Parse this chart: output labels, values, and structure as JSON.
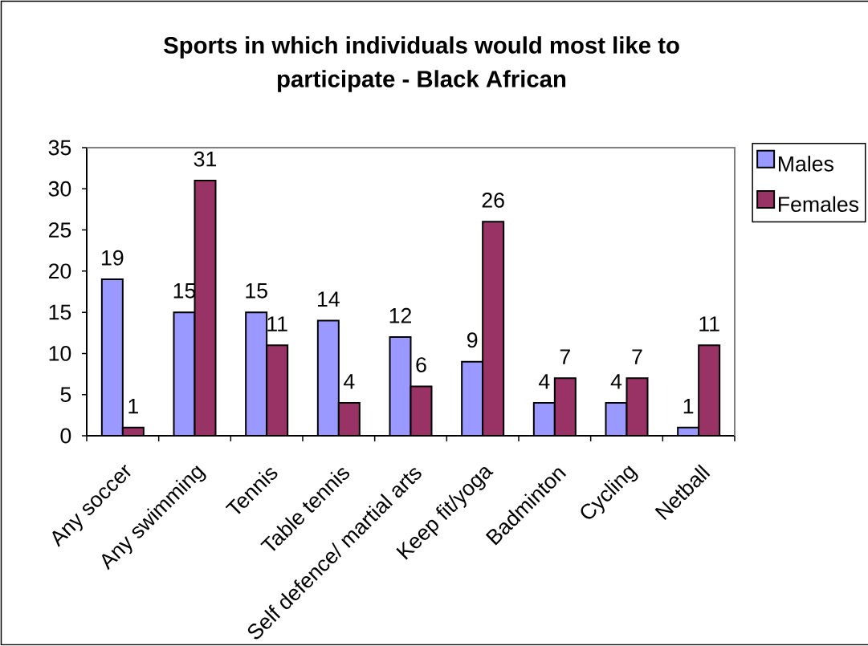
{
  "chart_data": {
    "type": "bar",
    "title": "Sports in which individuals would most like to participate - Black African",
    "categories": [
      "Any soccer",
      "Any swimming",
      "Tennis",
      "Table tennis",
      "Self defence/ martial arts",
      "Keep fit/yoga",
      "Badminton",
      "Cycling",
      "Netball"
    ],
    "series": [
      {
        "name": "Males",
        "color": "#9999ff",
        "values": [
          19,
          15,
          15,
          14,
          12,
          9,
          4,
          4,
          1
        ]
      },
      {
        "name": "Females",
        "color": "#993366",
        "values": [
          1,
          31,
          11,
          4,
          6,
          26,
          7,
          7,
          11
        ]
      }
    ],
    "ylim": [
      0,
      35
    ],
    "yticks": [
      0,
      5,
      10,
      15,
      20,
      25,
      30,
      35
    ],
    "legend": "right",
    "data_labels": true
  }
}
